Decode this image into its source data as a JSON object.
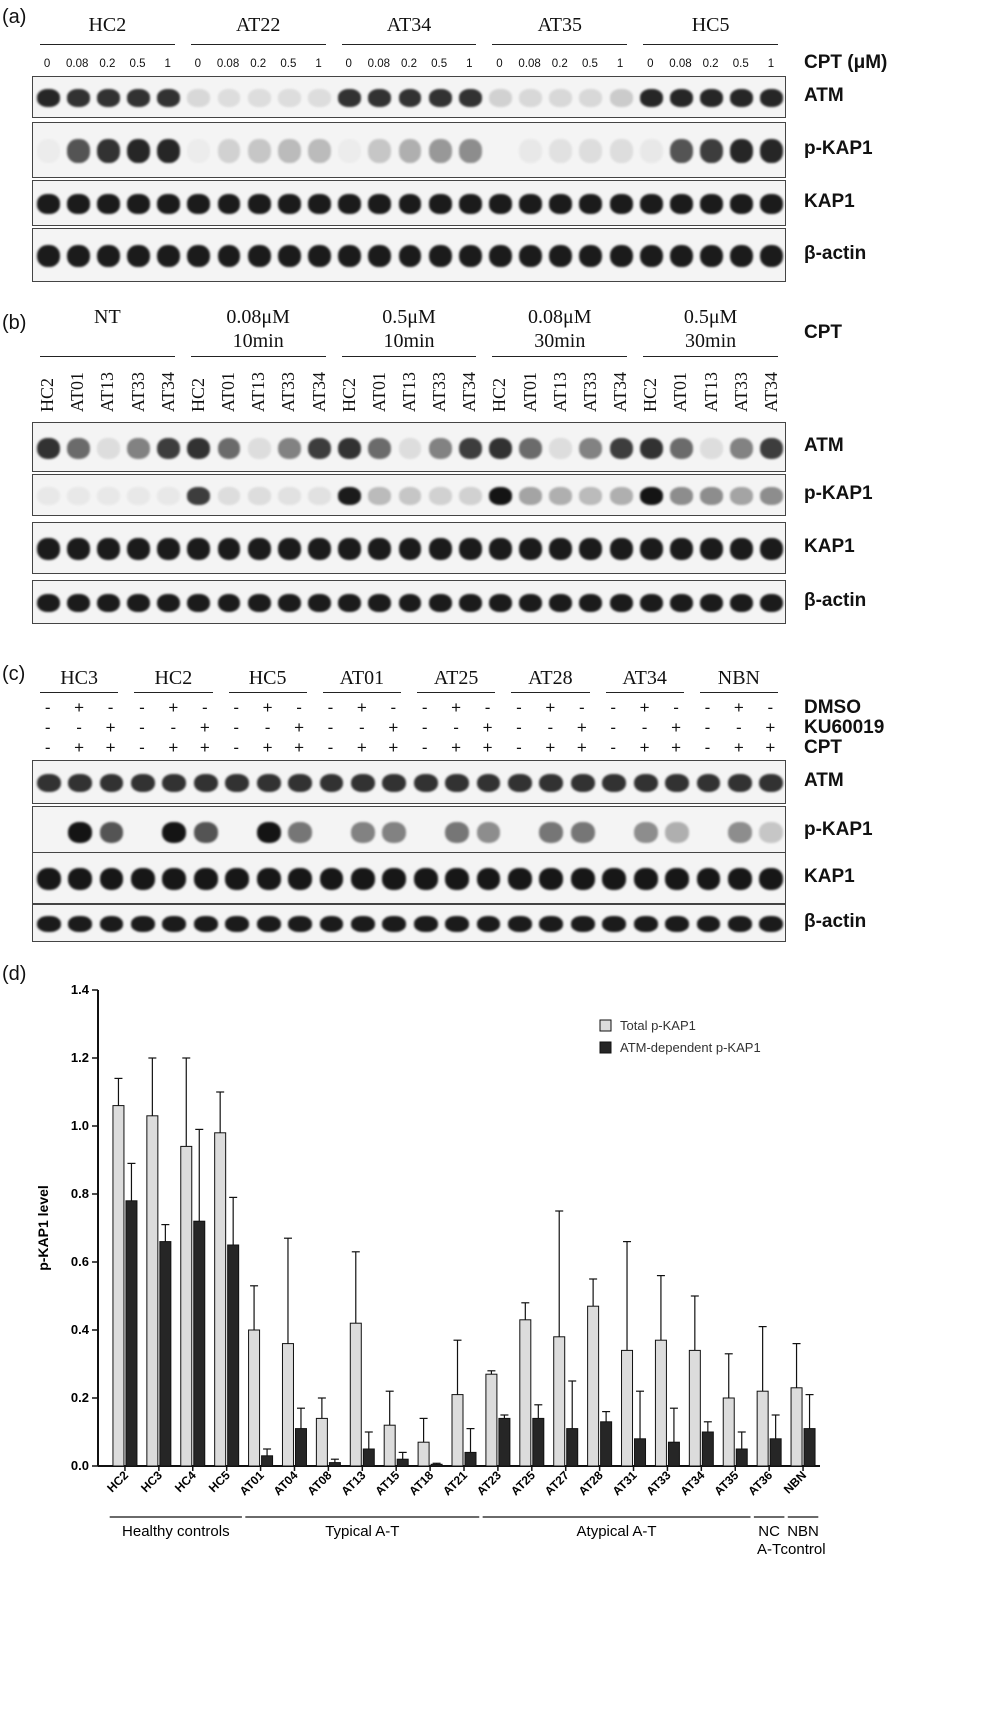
{
  "panel_a": {
    "label": "(a)",
    "groups": [
      "HC2",
      "AT22",
      "AT34",
      "AT35",
      "HC5"
    ],
    "concentrations": [
      "0",
      "0.08",
      "0.2",
      "0.5",
      "1",
      "0",
      "0.08",
      "0.2",
      "0.5",
      "1",
      "0",
      "0.08",
      "0.2",
      "0.5",
      "1",
      "0",
      "0.08",
      "0.2",
      "0.5",
      "1",
      "0",
      "0.08",
      "0.2",
      "0.5",
      "1"
    ],
    "cpt_label": "CPT (μM)",
    "rows": [
      "ATM",
      "p-KAP1",
      "KAP1",
      "β-actin"
    ]
  },
  "panel_b": {
    "label": "(b)",
    "groups": [
      {
        "line1": "NT",
        "line2": ""
      },
      {
        "line1": "0.08μM",
        "line2": "10min"
      },
      {
        "line1": "0.5μM",
        "line2": "10min"
      },
      {
        "line1": "0.08μM",
        "line2": "30min"
      },
      {
        "line1": "0.5μM",
        "line2": "30min"
      }
    ],
    "cpt_label": "CPT",
    "lanes": [
      "HC2",
      "AT01",
      "AT13",
      "AT33",
      "AT34",
      "HC2",
      "AT01",
      "AT13",
      "AT33",
      "AT34",
      "HC2",
      "AT01",
      "AT13",
      "AT33",
      "AT34",
      "HC2",
      "AT01",
      "AT13",
      "AT33",
      "AT34",
      "HC2",
      "AT01",
      "AT13",
      "AT33",
      "AT34"
    ],
    "rows": [
      "ATM",
      "p-KAP1",
      "KAP1",
      "β-actin"
    ]
  },
  "panel_c": {
    "label": "(c)",
    "groups": [
      "HC3",
      "HC2",
      "HC5",
      "AT01",
      "AT25",
      "AT28",
      "AT34",
      "NBN"
    ],
    "treatments": [
      {
        "name": "DMSO",
        "pattern": [
          "-",
          "+",
          "-"
        ]
      },
      {
        "name": "KU60019",
        "pattern": [
          "-",
          "-",
          "+"
        ]
      },
      {
        "name": "CPT",
        "pattern": [
          "-",
          "+",
          "+"
        ]
      }
    ],
    "rows": [
      "ATM",
      "p-KAP1",
      "KAP1",
      "β-actin"
    ]
  },
  "panel_d": {
    "label": "(d)",
    "group_labels": [
      "Healthy controls",
      "Typical A-T",
      "Atypical A-T",
      "NC",
      "A-T",
      "NBN",
      "control"
    ],
    "chart_data": {
      "type": "bar",
      "ylabel": "p-KAP1 level",
      "ylim": [
        0,
        1.4
      ],
      "yticks": [
        "0.0",
        "0.2",
        "0.4",
        "0.6",
        "0.8",
        "1.0",
        "1.2",
        "1.4"
      ],
      "categories": [
        "HC2",
        "HC3",
        "HC4",
        "HC5",
        "AT01",
        "AT04",
        "AT08",
        "AT13",
        "AT15",
        "AT18",
        "AT21",
        "AT23",
        "AT25",
        "AT27",
        "AT28",
        "AT31",
        "AT33",
        "AT34",
        "AT35",
        "AT36",
        "NBN"
      ],
      "series": [
        {
          "name": "Total p-KAP1",
          "color": "#dcdcdc",
          "values": [
            1.06,
            1.03,
            0.94,
            0.98,
            0.4,
            0.36,
            0.14,
            0.42,
            0.12,
            0.07,
            0.21,
            0.27,
            0.43,
            0.38,
            0.47,
            0.34,
            0.37,
            0.34,
            0.2,
            0.22,
            0.23
          ],
          "errors": [
            0.08,
            0.17,
            0.26,
            0.12,
            0.13,
            0.31,
            0.06,
            0.21,
            0.1,
            0.07,
            0.16,
            0.01,
            0.05,
            0.37,
            0.08,
            0.32,
            0.19,
            0.16,
            0.13,
            0.19,
            0.13
          ]
        },
        {
          "name": "ATM-dependent p-KAP1",
          "color": "#262626",
          "values": [
            0.78,
            0.66,
            0.72,
            0.65,
            0.03,
            0.11,
            0.01,
            0.05,
            0.02,
            0.005,
            0.04,
            0.14,
            0.14,
            0.11,
            0.13,
            0.08,
            0.07,
            0.1,
            0.05,
            0.08,
            0.11
          ],
          "errors": [
            0.11,
            0.05,
            0.27,
            0.14,
            0.02,
            0.06,
            0.01,
            0.05,
            0.02,
            0.003,
            0.07,
            0.01,
            0.04,
            0.14,
            0.03,
            0.14,
            0.1,
            0.03,
            0.05,
            0.07,
            0.1
          ]
        }
      ],
      "legend": "top-right",
      "grid": false
    }
  }
}
